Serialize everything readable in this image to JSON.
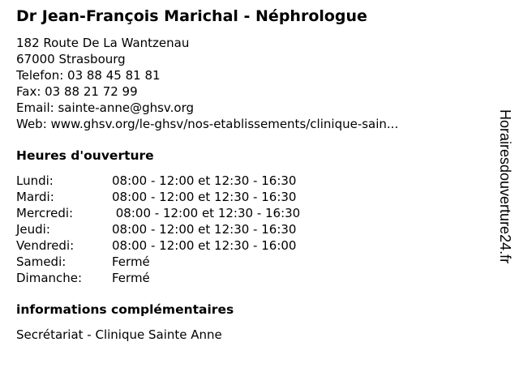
{
  "title": "Dr Jean-François Marichal - Néphrologue",
  "contact": {
    "address": "182 Route De La Wantzenau",
    "city": "67000 Strasbourg",
    "phone": "Telefon: 03 88 45 81 81",
    "fax": "Fax: 03 88 21 72 99",
    "email": "Email: sainte-anne@ghsv.org",
    "web": "Web: www.ghsv.org/le-ghsv/nos-etablissements/clinique-sain..."
  },
  "hours_heading": "Heures d'ouverture",
  "hours": [
    {
      "day": "Lundi:",
      "time": "08:00 - 12:00 et 12:30 - 16:30"
    },
    {
      "day": "Mardi:",
      "time": "08:00 - 12:00 et 12:30 - 16:30"
    },
    {
      "day": "Mercredi:",
      "time": " 08:00 - 12:00 et 12:30 - 16:30"
    },
    {
      "day": "Jeudi:",
      "time": "08:00 - 12:00 et 12:30 - 16:30"
    },
    {
      "day": "Vendredi:",
      "time": "08:00 - 12:00 et 12:30 - 16:00"
    },
    {
      "day": "Samedi:",
      "time": "Fermé"
    },
    {
      "day": "Dimanche:",
      "time": "Fermé"
    }
  ],
  "extra_heading": "informations complémentaires",
  "extra_text": "Secrétariat - Clinique Sainte Anne",
  "watermark": "Horairesdouverture24.fr"
}
